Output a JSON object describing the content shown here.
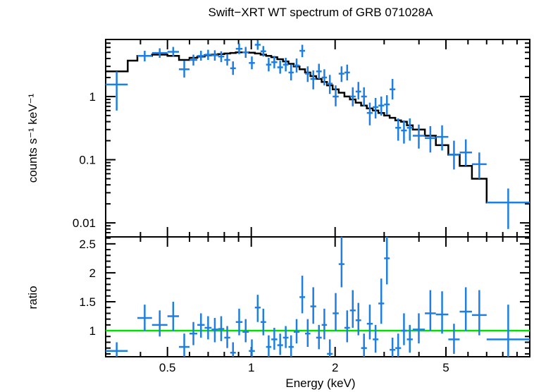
{
  "chart_data": {
    "type": "scatter",
    "title": "Swift−XRT WT spectrum of GRB 071028A",
    "xlabel": "Energy (keV)",
    "xscale": "log",
    "xlim": [
      0.3,
      10
    ],
    "xticks": [
      0.5,
      1,
      2,
      5
    ],
    "xtick_labels": [
      "0.5",
      "1",
      "2",
      "5"
    ],
    "colors": {
      "data": "#1f7fe0",
      "model": "#000000",
      "unity": "#00dd00"
    },
    "panels": [
      {
        "id": "spectrum",
        "ylabel": "counts s⁻¹ keV⁻¹",
        "yscale": "log",
        "ylim": [
          0.006,
          8
        ],
        "yticks": [
          0.01,
          0.1,
          1
        ],
        "ytick_labels": [
          "0.01",
          "0.1",
          "1"
        ],
        "series": [
          {
            "kind": "points",
            "points": [
              [
                0.3,
                0.36,
                1.55,
                0.6,
                2.5
              ],
              [
                0.39,
                0.44,
                4.4,
                3.6,
                5.3
              ],
              [
                0.44,
                0.5,
                4.9,
                4.1,
                5.8
              ],
              [
                0.5,
                0.55,
                5.1,
                4.3,
                6.1
              ],
              [
                0.55,
                0.6,
                2.7,
                2.0,
                3.7
              ],
              [
                0.6,
                0.64,
                3.8,
                3.1,
                4.6
              ],
              [
                0.64,
                0.68,
                4.4,
                3.7,
                5.3
              ],
              [
                0.68,
                0.72,
                4.6,
                3.8,
                5.5
              ],
              [
                0.72,
                0.76,
                4.5,
                3.7,
                5.4
              ],
              [
                0.76,
                0.8,
                4.3,
                3.5,
                5.2
              ],
              [
                0.8,
                0.84,
                3.8,
                3.1,
                4.7
              ],
              [
                0.84,
                0.88,
                2.8,
                2.2,
                3.6
              ],
              [
                0.88,
                0.93,
                5.7,
                4.7,
                6.9
              ],
              [
                0.93,
                0.98,
                5.0,
                4.1,
                6.1
              ],
              [
                0.98,
                1.03,
                3.4,
                2.7,
                4.3
              ],
              [
                1.03,
                1.08,
                6.6,
                5.5,
                7.8
              ],
              [
                1.08,
                1.13,
                5.2,
                4.3,
                6.3
              ],
              [
                1.13,
                1.18,
                3.2,
                2.5,
                4.1
              ],
              [
                1.18,
                1.24,
                3.5,
                2.8,
                4.4
              ],
              [
                1.24,
                1.3,
                2.9,
                2.3,
                3.7
              ],
              [
                1.3,
                1.36,
                3.2,
                2.5,
                4.1
              ],
              [
                1.36,
                1.42,
                2.4,
                1.8,
                3.2
              ],
              [
                1.42,
                1.49,
                3.1,
                2.4,
                4.0
              ],
              [
                1.49,
                1.56,
                5.3,
                4.2,
                6.6
              ],
              [
                1.56,
                1.63,
                2.3,
                1.7,
                3.0
              ],
              [
                1.63,
                1.71,
                1.9,
                1.3,
                2.6
              ],
              [
                1.71,
                1.79,
                2.5,
                1.9,
                3.3
              ],
              [
                1.79,
                1.87,
                2.0,
                1.5,
                2.7
              ],
              [
                1.87,
                1.96,
                1.6,
                1.1,
                2.2
              ],
              [
                1.96,
                2.06,
                1.0,
                0.7,
                1.5
              ],
              [
                2.06,
                2.16,
                2.3,
                1.7,
                3.0
              ],
              [
                2.16,
                2.26,
                2.4,
                1.8,
                3.2
              ],
              [
                2.26,
                2.37,
                1.0,
                0.7,
                1.4
              ],
              [
                2.37,
                2.48,
                1.2,
                0.9,
                1.7
              ],
              [
                2.48,
                2.6,
                1.0,
                0.7,
                1.4
              ],
              [
                2.6,
                2.73,
                0.55,
                0.35,
                0.8
              ],
              [
                2.73,
                2.86,
                0.68,
                0.45,
                0.95
              ],
              [
                2.86,
                3.0,
                0.72,
                0.5,
                1.0
              ],
              [
                3.0,
                3.14,
                0.75,
                0.52,
                1.05
              ],
              [
                3.14,
                3.29,
                1.3,
                0.9,
                1.9
              ],
              [
                3.29,
                3.45,
                0.32,
                0.2,
                0.45
              ],
              [
                3.45,
                3.62,
                0.29,
                0.18,
                0.42
              ],
              [
                3.62,
                3.8,
                0.32,
                0.2,
                0.45
              ],
              [
                3.8,
                4.2,
                0.24,
                0.15,
                0.36
              ],
              [
                4.2,
                4.6,
                0.22,
                0.13,
                0.34
              ],
              [
                4.6,
                5.1,
                0.23,
                0.14,
                0.35
              ],
              [
                5.1,
                5.6,
                0.12,
                0.07,
                0.2
              ],
              [
                5.6,
                6.2,
                0.13,
                0.08,
                0.21
              ],
              [
                6.2,
                7.0,
                0.085,
                0.05,
                0.13
              ],
              [
                7.0,
                10.0,
                0.021,
                0.008,
                0.035
              ]
            ]
          },
          {
            "kind": "step",
            "edges": [
              0.3,
              0.36,
              0.39,
              0.44,
              0.5,
              0.55,
              0.6,
              0.64,
              0.68,
              0.72,
              0.76,
              0.8,
              0.84,
              0.88,
              0.93,
              0.98,
              1.03,
              1.08,
              1.13,
              1.18,
              1.24,
              1.3,
              1.36,
              1.42,
              1.49,
              1.56,
              1.63,
              1.71,
              1.79,
              1.87,
              1.96,
              2.06,
              2.16,
              2.26,
              2.37,
              2.48,
              2.6,
              2.73,
              2.86,
              3.0,
              3.14,
              3.29,
              3.45,
              3.62,
              3.8,
              4.2,
              4.6,
              5.1,
              5.6,
              6.2,
              7.0,
              10.0
            ],
            "values": [
              2.5,
              3.7,
              4.4,
              4.6,
              4.4,
              3.8,
              4.1,
              4.3,
              4.5,
              4.6,
              4.7,
              4.8,
              4.9,
              5.0,
              5.0,
              4.95,
              4.8,
              4.6,
              4.4,
              4.2,
              3.9,
              3.6,
              3.3,
              3.0,
              2.7,
              2.4,
              2.1,
              1.9,
              1.7,
              1.5,
              1.3,
              1.15,
              1.0,
              0.9,
              0.8,
              0.72,
              0.65,
              0.6,
              0.55,
              0.5,
              0.46,
              0.42,
              0.4,
              0.35,
              0.3,
              0.24,
              0.17,
              0.12,
              0.08,
              0.05,
              0.021
            ]
          }
        ]
      },
      {
        "id": "ratio",
        "ylabel": "ratio",
        "yscale": "linear",
        "ylim": [
          0.55,
          2.62
        ],
        "yticks": [
          1,
          1.5,
          2,
          2.5
        ],
        "ytick_labels": [
          "1",
          "1.5",
          "2",
          "2.5"
        ],
        "reference_line": 1,
        "series": [
          {
            "kind": "points",
            "points": [
              [
                0.3,
                0.36,
                0.65,
                0.5,
                0.8
              ],
              [
                0.39,
                0.44,
                1.22,
                1.0,
                1.45
              ],
              [
                0.44,
                0.5,
                1.1,
                0.9,
                1.35
              ],
              [
                0.5,
                0.55,
                1.25,
                1.0,
                1.5
              ],
              [
                0.55,
                0.6,
                0.72,
                0.55,
                0.95
              ],
              [
                0.6,
                0.64,
                0.95,
                0.75,
                1.15
              ],
              [
                0.64,
                0.68,
                1.1,
                0.88,
                1.3
              ],
              [
                0.68,
                0.72,
                1.05,
                0.85,
                1.25
              ],
              [
                0.72,
                0.76,
                1.02,
                0.8,
                1.22
              ],
              [
                0.76,
                0.8,
                1.03,
                0.82,
                1.25
              ],
              [
                0.8,
                0.84,
                0.88,
                0.7,
                1.08
              ],
              [
                0.84,
                0.88,
                0.62,
                0.5,
                0.8
              ],
              [
                0.88,
                0.93,
                1.15,
                0.92,
                1.38
              ],
              [
                0.93,
                0.98,
                0.98,
                0.8,
                1.2
              ],
              [
                0.98,
                1.03,
                0.65,
                0.5,
                0.85
              ],
              [
                1.03,
                1.08,
                1.4,
                1.15,
                1.62
              ],
              [
                1.08,
                1.13,
                1.15,
                0.92,
                1.38
              ],
              [
                1.13,
                1.18,
                0.72,
                0.55,
                0.92
              ],
              [
                1.18,
                1.24,
                0.85,
                0.67,
                1.05
              ],
              [
                1.24,
                1.3,
                0.75,
                0.58,
                0.95
              ],
              [
                1.3,
                1.36,
                0.88,
                0.7,
                1.08
              ],
              [
                1.36,
                1.42,
                0.72,
                0.55,
                0.92
              ],
              [
                1.42,
                1.49,
                0.98,
                0.78,
                1.2
              ],
              [
                1.49,
                1.56,
                1.58,
                1.3,
                1.95
              ],
              [
                1.56,
                1.63,
                0.95,
                0.72,
                1.2
              ],
              [
                1.63,
                1.71,
                1.42,
                1.12,
                1.75
              ],
              [
                1.71,
                1.79,
                0.88,
                0.68,
                1.1
              ],
              [
                1.79,
                1.87,
                1.1,
                0.85,
                1.38
              ],
              [
                1.87,
                1.96,
                0.6,
                0.5,
                0.85
              ],
              [
                1.96,
                2.06,
                1.3,
                1.0,
                1.65
              ],
              [
                2.06,
                2.16,
                2.15,
                1.75,
                2.62
              ],
              [
                2.16,
                2.26,
                1.05,
                0.8,
                1.35
              ],
              [
                2.26,
                2.37,
                1.35,
                1.05,
                1.7
              ],
              [
                2.37,
                2.48,
                1.18,
                0.92,
                1.48
              ],
              [
                2.48,
                2.6,
                0.7,
                0.5,
                0.95
              ],
              [
                2.6,
                2.73,
                1.12,
                0.85,
                1.45
              ],
              [
                2.73,
                2.86,
                0.85,
                0.62,
                1.1
              ],
              [
                2.86,
                3.0,
                1.47,
                1.12,
                1.9
              ],
              [
                3.0,
                3.14,
                2.25,
                1.8,
                2.62
              ],
              [
                3.14,
                3.29,
                0.67,
                0.5,
                0.88
              ],
              [
                3.29,
                3.45,
                0.7,
                0.5,
                0.95
              ],
              [
                3.45,
                3.62,
                1.0,
                0.75,
                1.3
              ],
              [
                3.62,
                3.8,
                0.85,
                0.62,
                1.1
              ],
              [
                3.8,
                4.2,
                1.02,
                0.78,
                1.3
              ],
              [
                4.2,
                4.6,
                1.3,
                1.0,
                1.7
              ],
              [
                4.6,
                5.1,
                1.28,
                0.95,
                1.68
              ],
              [
                5.1,
                5.6,
                0.85,
                0.6,
                1.12
              ],
              [
                5.6,
                6.2,
                1.33,
                1.0,
                1.75
              ],
              [
                6.2,
                7.0,
                1.27,
                0.92,
                1.7
              ],
              [
                7.0,
                10.0,
                0.85,
                0.55,
                1.45
              ]
            ]
          }
        ]
      }
    ]
  }
}
